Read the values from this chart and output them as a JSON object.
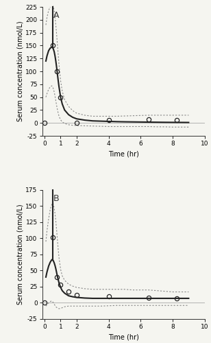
{
  "panel_A": {
    "label": "A",
    "obs_x": [
      0.0,
      0.5,
      0.75,
      1.0,
      2.0,
      4.0,
      6.5,
      8.25
    ],
    "obs_y": [
      0.0,
      150.0,
      100.0,
      50.0,
      0.0,
      5.0,
      7.0,
      5.0
    ],
    "pred_x": [
      0.08,
      0.15,
      0.25,
      0.35,
      0.45,
      0.5,
      0.55,
      0.6,
      0.65,
      0.7,
      0.75,
      0.8,
      0.85,
      0.9,
      1.0,
      1.1,
      1.25,
      1.5,
      1.75,
      2.0,
      2.5,
      3.0,
      3.5,
      4.0,
      4.5,
      5.0,
      5.5,
      6.0,
      6.5,
      7.0,
      7.5,
      8.0,
      8.5,
      9.0
    ],
    "pred_y": [
      120.0,
      130.0,
      140.0,
      145.0,
      147.0,
      146.0,
      143.0,
      138.0,
      130.0,
      120.0,
      108.0,
      95.0,
      82.0,
      70.0,
      50.0,
      37.0,
      25.0,
      16.0,
      11.0,
      8.0,
      5.5,
      4.0,
      3.5,
      3.0,
      2.5,
      2.2,
      2.0,
      1.8,
      1.6,
      1.4,
      1.2,
      1.1,
      1.0,
      0.9
    ],
    "ci_upper_x": [
      0.08,
      0.15,
      0.25,
      0.35,
      0.45,
      0.5,
      0.55,
      0.6,
      0.65,
      0.7,
      0.75,
      0.8,
      0.85,
      0.9,
      1.0,
      1.1,
      1.25,
      1.5,
      1.75,
      2.0,
      2.5,
      3.0,
      3.5,
      4.0,
      4.5,
      5.0,
      5.5,
      6.0,
      6.5,
      7.0,
      7.5,
      8.0,
      8.5,
      9.0
    ],
    "ci_upper_y": [
      190.0,
      205.0,
      218.0,
      225.0,
      228.0,
      228.0,
      225.0,
      218.0,
      205.0,
      190.0,
      172.0,
      152.0,
      132.0,
      113.0,
      82.0,
      62.0,
      45.0,
      32.0,
      24.0,
      19.0,
      15.0,
      13.0,
      13.0,
      13.0,
      13.0,
      13.5,
      14.0,
      14.5,
      15.0,
      15.0,
      15.0,
      15.0,
      15.0,
      15.0
    ],
    "ci_lower_x": [
      0.08,
      0.15,
      0.25,
      0.35,
      0.45,
      0.5,
      0.55,
      0.6,
      0.65,
      0.7,
      0.75,
      0.8,
      0.85,
      0.9,
      1.0,
      1.1,
      1.25,
      1.5,
      1.75,
      2.0,
      2.5,
      3.0,
      3.5,
      4.0,
      4.5,
      5.0,
      5.5,
      6.0,
      6.5,
      7.0,
      7.5,
      8.0,
      8.5,
      9.0
    ],
    "ci_lower_y": [
      50.0,
      57.0,
      65.0,
      70.0,
      72.0,
      70.0,
      66.0,
      60.0,
      52.0,
      43.0,
      34.0,
      26.0,
      19.0,
      13.0,
      6.0,
      2.0,
      -1.0,
      -3.5,
      -4.5,
      -5.0,
      -5.5,
      -6.0,
      -6.5,
      -7.0,
      -7.0,
      -7.0,
      -7.0,
      -7.0,
      -7.0,
      -7.5,
      -7.5,
      -8.0,
      -8.0,
      -8.0
    ],
    "ylim": [
      -25,
      225
    ],
    "yticks": [
      -25,
      0,
      25,
      50,
      75,
      100,
      125,
      150,
      175,
      200,
      225
    ],
    "ytick_labels": [
      "-25",
      "0",
      "25",
      "50",
      "75",
      "100",
      "125",
      "150",
      "175",
      "200",
      "225"
    ],
    "xlim": [
      -0.15,
      10
    ],
    "xticks": [
      0,
      1,
      2,
      4,
      6,
      8,
      10
    ],
    "xtick_labels": [
      "0",
      "1",
      "2",
      "4",
      "6",
      "8",
      "10"
    ],
    "xlabel": "Time (hr)",
    "ylabel": "Serum concentration (nmol/L)",
    "ci_spike_x": 0.5,
    "ci_spike_top": 228.0
  },
  "panel_B": {
    "label": "B",
    "obs_x": [
      0.0,
      0.5,
      0.75,
      1.0,
      1.5,
      2.0,
      4.0,
      6.5,
      8.25
    ],
    "obs_y": [
      0.0,
      102.0,
      40.0,
      28.0,
      18.0,
      12.0,
      10.0,
      8.0,
      7.0
    ],
    "pred_x": [
      0.08,
      0.15,
      0.25,
      0.35,
      0.45,
      0.5,
      0.55,
      0.6,
      0.65,
      0.7,
      0.75,
      0.8,
      0.85,
      0.9,
      1.0,
      1.1,
      1.25,
      1.5,
      1.75,
      2.0,
      2.5,
      3.0,
      3.5,
      4.0,
      4.5,
      5.0,
      5.5,
      6.0,
      6.5,
      7.0,
      7.5,
      8.0,
      8.5,
      9.0
    ],
    "pred_y": [
      40.0,
      48.0,
      57.0,
      63.0,
      67.0,
      67.0,
      65.0,
      62.0,
      58.0,
      53.0,
      47.0,
      41.0,
      36.0,
      31.0,
      24.0,
      19.0,
      15.0,
      11.0,
      9.5,
      8.5,
      7.5,
      7.0,
      7.0,
      7.0,
      7.0,
      7.0,
      7.0,
      7.0,
      7.0,
      7.0,
      7.0,
      7.0,
      7.0,
      7.0
    ],
    "ci_upper_x": [
      0.08,
      0.15,
      0.25,
      0.35,
      0.45,
      0.5,
      0.55,
      0.6,
      0.65,
      0.7,
      0.75,
      0.8,
      0.85,
      0.9,
      1.0,
      1.1,
      1.25,
      1.5,
      1.75,
      2.0,
      2.5,
      3.0,
      3.5,
      4.0,
      4.5,
      5.0,
      5.5,
      6.0,
      6.5,
      7.0,
      7.5,
      8.0,
      8.5,
      9.0
    ],
    "ci_upper_y": [
      95.0,
      112.0,
      130.0,
      145.0,
      153.0,
      155.0,
      153.0,
      147.0,
      138.0,
      127.0,
      113.0,
      98.0,
      83.0,
      70.0,
      52.0,
      42.0,
      35.0,
      29.0,
      26.0,
      24.0,
      22.0,
      21.0,
      21.0,
      21.0,
      21.0,
      21.0,
      20.0,
      20.0,
      20.0,
      19.0,
      18.0,
      17.0,
      17.0,
      17.0
    ],
    "ci_lower_x": [
      0.08,
      0.15,
      0.25,
      0.35,
      0.45,
      0.5,
      0.55,
      0.6,
      0.65,
      0.7,
      0.75,
      0.8,
      0.85,
      0.9,
      1.0,
      1.1,
      1.25,
      1.5,
      1.75,
      2.0,
      2.5,
      3.0,
      3.5,
      4.0,
      4.5,
      5.0,
      5.5,
      6.0,
      6.5,
      7.0,
      7.5,
      8.0,
      8.5,
      9.0
    ],
    "ci_lower_y": [
      -5.0,
      -3.0,
      0.0,
      2.0,
      3.0,
      2.0,
      0.0,
      -2.0,
      -4.0,
      -6.0,
      -7.0,
      -8.0,
      -8.5,
      -9.0,
      -8.5,
      -7.5,
      -6.0,
      -5.0,
      -5.0,
      -5.0,
      -5.0,
      -5.0,
      -5.0,
      -4.5,
      -4.0,
      -4.0,
      -4.0,
      -4.0,
      -4.0,
      -4.0,
      -4.0,
      -4.0,
      -4.0,
      -4.0
    ],
    "ylim": [
      -25,
      175
    ],
    "yticks": [
      -25,
      0,
      25,
      50,
      75,
      100,
      125,
      150,
      175
    ],
    "ytick_labels": [
      "-25",
      "0",
      "25",
      "50",
      "75",
      "100",
      "125",
      "150",
      "175"
    ],
    "xlim": [
      -0.15,
      10
    ],
    "xticks": [
      0,
      1,
      2,
      4,
      6,
      8,
      10
    ],
    "xtick_labels": [
      "0",
      "1",
      "2",
      "4",
      "6",
      "8",
      "10"
    ],
    "xlabel": "Time (hr)",
    "ylabel": "Serum concentration (nmol/L)",
    "ci_spike_x": 0.5,
    "ci_spike_top": 155.0
  },
  "line_color": "#222222",
  "ci_color": "#888888",
  "obs_color": "#222222",
  "background_color": "#f5f5f0",
  "fontsize_label": 7,
  "fontsize_tick": 6.5,
  "fontsize_panel_label": 9
}
